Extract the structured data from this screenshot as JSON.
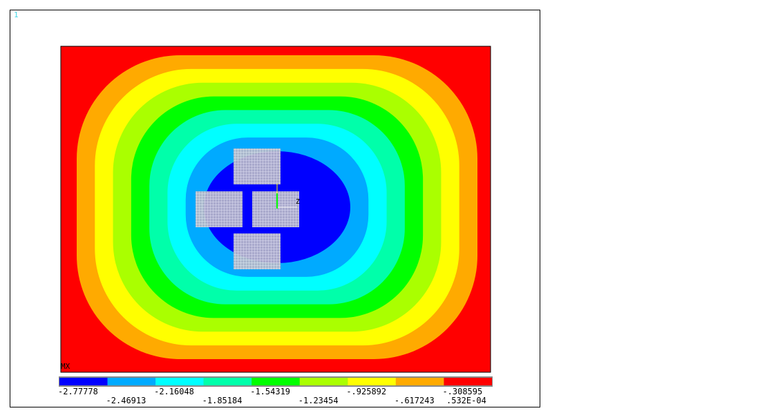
{
  "window_number": "1",
  "colors": {
    "bands": [
      "#0000ff",
      "#00aaff",
      "#00ffff",
      "#00ffaa",
      "#00ff00",
      "#aaff00",
      "#ffff00",
      "#ffaa00",
      "#ff0000"
    ],
    "mesh": "#e6e6e6",
    "frame": "#000000",
    "triad": "#00ff00"
  },
  "chart_data": {
    "type": "heatmap",
    "plot_type": "contour",
    "legend_placement": "bottom",
    "marker_label": "MX",
    "triad_label": "Z",
    "legend": {
      "levels": [
        -2.77778,
        -2.46913,
        -2.16048,
        -1.85184,
        -1.54319,
        -1.23454,
        -0.925892,
        -0.617243,
        -0.308595,
        5.32e-05
      ],
      "labels": [
        "-2.77778",
        "-2.46913",
        "-2.16048",
        "-1.85184",
        "-1.54319",
        "-1.23454",
        "-.925892",
        "-.617243",
        "-.308595",
        ".532E-04"
      ]
    },
    "extremes": {
      "min": -2.77778,
      "max": 5.32e-05
    },
    "mesh_patches": 4
  }
}
